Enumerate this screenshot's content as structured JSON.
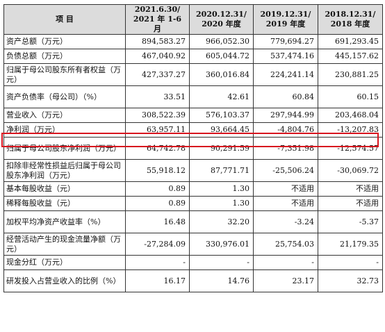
{
  "table": {
    "header": {
      "item": "项  目",
      "periods": [
        {
          "line1": "2021.6.30/",
          "line2": "2021 年 1-6 月"
        },
        {
          "line1": "2020.12.31/",
          "line2": "2020 年度"
        },
        {
          "line1": "2019.12.31/",
          "line2": "2019 年度"
        },
        {
          "line1": "2018.12.31/",
          "line2": "2018 年度"
        }
      ]
    },
    "rows": [
      {
        "label": "资产总额（万元）",
        "values": [
          "894,583.27",
          "966,052.30",
          "779,694.27",
          "691,293.45"
        ]
      },
      {
        "label": "负债总额（万元）",
        "values": [
          "467,040.92",
          "605,044.72",
          "537,474.16",
          "445,157.62"
        ]
      },
      {
        "label": "归属于母公司股东所有者权益（万元）",
        "values": [
          "427,337.27",
          "360,016.84",
          "224,241.14",
          "230,881.25"
        ]
      },
      {
        "label": "资产负债率（母公司）（%）",
        "values": [
          "33.51",
          "42.61",
          "60.84",
          "60.15"
        ]
      },
      {
        "label": "营业收入（万元）",
        "values": [
          "308,522.39",
          "576,103.37",
          "297,944.99",
          "203,468.04"
        ]
      },
      {
        "label": "净利润（万元）",
        "values": [
          "63,957.11",
          "93,664.45",
          "-4,804.76",
          "-13,207.83"
        ]
      },
      {
        "label": "归属于母公司股东净利润（万元）",
        "values": [
          "64,742.78",
          "90,291.59",
          "-7,351.98",
          "-12,574.57"
        ]
      },
      {
        "label": "扣除非经常性损益后归属于母公司股东净利润（万元）",
        "values": [
          "55,918.12",
          "87,771.71",
          "-25,506.24",
          "-30,069.72"
        ]
      },
      {
        "label": "基本每股收益（元）",
        "values": [
          "0.89",
          "1.30",
          "不适用",
          "不适用"
        ]
      },
      {
        "label": "稀释每股收益（元）",
        "values": [
          "0.89",
          "1.30",
          "不适用",
          "不适用"
        ]
      },
      {
        "label": "加权平均净资产收益率（%）",
        "values": [
          "16.48",
          "32.20",
          "-3.24",
          "-5.37"
        ]
      },
      {
        "label": "经营活动产生的现金流量净额（万元）",
        "values": [
          "-27,284.09",
          "330,976.01",
          "25,754.03",
          "21,179.35"
        ]
      },
      {
        "label": "现金分红（万元）",
        "values": [
          "-",
          "-",
          "-",
          "-"
        ]
      },
      {
        "label": "研发投入占营业收入的比例（%）",
        "values": [
          "16.17",
          "14.76",
          "23.17",
          "32.73"
        ]
      }
    ]
  },
  "highlight": {
    "row_label": "净利润（万元）",
    "color": "#d8141e"
  }
}
